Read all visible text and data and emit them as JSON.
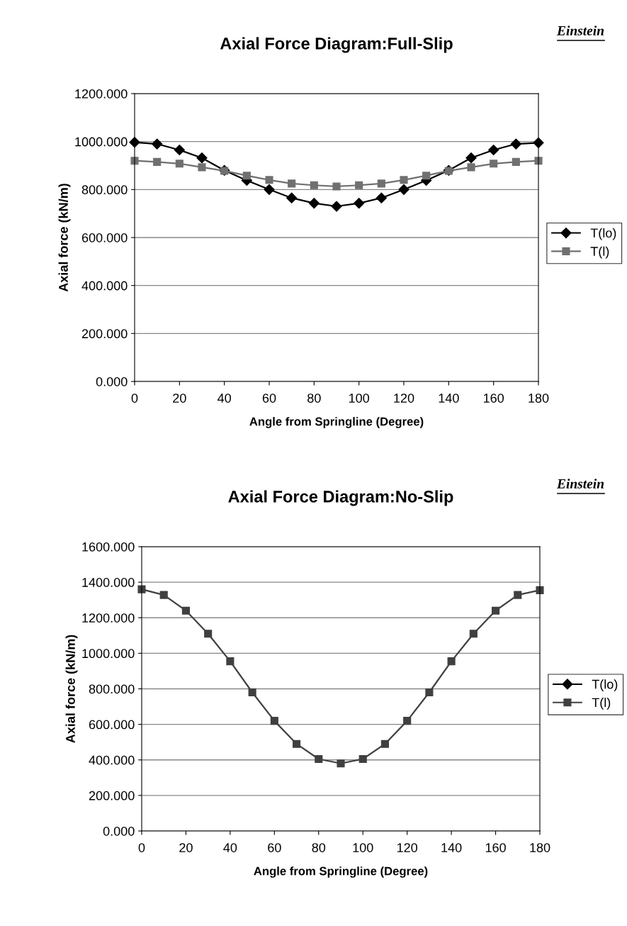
{
  "chart_data": [
    {
      "type": "line",
      "title": "Axial Force Diagram:Full-Slip",
      "xlabel": "Angle from Springline (Degree)",
      "ylabel": "Axial force (kN/m)",
      "annotations": [
        "Einstein"
      ],
      "x": [
        0,
        10,
        20,
        30,
        40,
        50,
        60,
        70,
        80,
        90,
        100,
        110,
        120,
        130,
        140,
        150,
        160,
        170,
        180
      ],
      "series": [
        {
          "name": "T(lo)",
          "color": "#000000",
          "marker": "diamond",
          "values": [
            997,
            990,
            965,
            932,
            880,
            838,
            800,
            765,
            743,
            730,
            743,
            765,
            800,
            838,
            880,
            932,
            965,
            990,
            995
          ]
        },
        {
          "name": "T(l)",
          "color": "#707070",
          "marker": "square",
          "values": [
            920,
            915,
            908,
            893,
            878,
            858,
            840,
            825,
            818,
            813,
            818,
            825,
            840,
            858,
            878,
            893,
            908,
            915,
            920
          ]
        }
      ],
      "xlim": [
        0,
        180
      ],
      "xticks": [
        0,
        20,
        40,
        60,
        80,
        100,
        120,
        140,
        160,
        180
      ],
      "ylim": [
        0,
        1200
      ],
      "yticks": [
        {
          "value": 0,
          "label": "0.000"
        },
        {
          "value": 200,
          "label": "200.000"
        },
        {
          "value": 400,
          "label": "400.000"
        },
        {
          "value": 600,
          "label": "600.000"
        },
        {
          "value": 800,
          "label": "800.000"
        },
        {
          "value": 1000,
          "label": "1000.000"
        },
        {
          "value": 1200,
          "label": "1200.000"
        }
      ],
      "grid": "y",
      "legend": "right",
      "line_style": "solid"
    },
    {
      "type": "line",
      "title": "Axial Force Diagram:No-Slip",
      "xlabel": "Angle from Springline (Degree)",
      "ylabel": "Axial force (kN/m)",
      "annotations": [
        "Einstein"
      ],
      "x": [
        0,
        10,
        20,
        30,
        40,
        50,
        60,
        70,
        80,
        90,
        100,
        110,
        120,
        130,
        140,
        150,
        160,
        170,
        180
      ],
      "series": [
        {
          "name": "T(lo)",
          "color": "#000000",
          "marker": "diamond",
          "values": [
            null,
            null,
            null,
            null,
            null,
            null,
            null,
            null,
            null,
            null,
            null,
            null,
            null,
            null,
            null,
            null,
            null,
            null,
            null
          ]
        },
        {
          "name": "T(l)",
          "color": "#404040",
          "marker": "square",
          "values": [
            1360,
            1328,
            1240,
            1110,
            955,
            780,
            620,
            490,
            405,
            380,
            405,
            490,
            620,
            780,
            955,
            1110,
            1240,
            1328,
            1355
          ]
        }
      ],
      "xlim": [
        0,
        180
      ],
      "xticks": [
        0,
        20,
        40,
        60,
        80,
        100,
        120,
        140,
        160,
        180
      ],
      "ylim": [
        0,
        1600
      ],
      "yticks": [
        {
          "value": 0,
          "label": "0.000"
        },
        {
          "value": 200,
          "label": "200.000"
        },
        {
          "value": 400,
          "label": "400.000"
        },
        {
          "value": 600,
          "label": "600.000"
        },
        {
          "value": 800,
          "label": "800.000"
        },
        {
          "value": 1000,
          "label": "1000.000"
        },
        {
          "value": 1200,
          "label": "1200.000"
        },
        {
          "value": 1400,
          "label": "1400.000"
        },
        {
          "value": 1600,
          "label": "1600.000"
        }
      ],
      "grid": "y",
      "legend": "right",
      "line_style": "solid"
    }
  ]
}
